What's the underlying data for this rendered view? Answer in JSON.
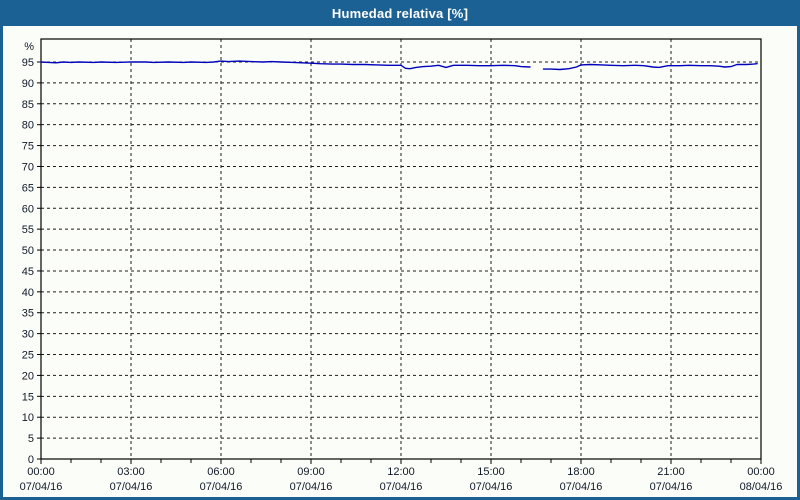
{
  "window": {
    "title": "Humedad relativa [%]"
  },
  "colors": {
    "frame_blue": "#1c6194",
    "background": "#fbfef8",
    "line_blue": "#0000bb",
    "grid_black": "#1c1c1c",
    "axis_black": "#000000",
    "tick_text": "#10182a",
    "title_text": "#ffffff"
  },
  "chart_data": {
    "type": "line",
    "title": "Humedad relativa [%]",
    "ylabel": "%",
    "xlabel": "",
    "grid": "dashed",
    "legend": "none",
    "xlim_hours": [
      0,
      24
    ],
    "ylim": [
      0,
      100.5
    ],
    "y_tick_step": 5,
    "y_ticks": [
      0,
      5,
      10,
      15,
      20,
      25,
      30,
      35,
      40,
      45,
      50,
      55,
      60,
      65,
      70,
      75,
      80,
      85,
      90,
      95
    ],
    "x_minor_step_hours": 1,
    "x_major_ticks": [
      {
        "hour": 0,
        "time": "00:00",
        "date": "07/04/16"
      },
      {
        "hour": 3,
        "time": "03:00",
        "date": "07/04/16"
      },
      {
        "hour": 6,
        "time": "06:00",
        "date": "07/04/16"
      },
      {
        "hour": 9,
        "time": "09:00",
        "date": "07/04/16"
      },
      {
        "hour": 12,
        "time": "12:00",
        "date": "07/04/16"
      },
      {
        "hour": 15,
        "time": "15:00",
        "date": "07/04/16"
      },
      {
        "hour": 18,
        "time": "18:00",
        "date": "07/04/16"
      },
      {
        "hour": 21,
        "time": "21:00",
        "date": "07/04/16"
      },
      {
        "hour": 24,
        "time": "00:00",
        "date": "08/04/16"
      }
    ],
    "series": [
      {
        "name": "Humedad relativa",
        "color": "#0000bb",
        "points": [
          [
            0,
            95.0
          ],
          [
            0.25,
            94.9
          ],
          [
            0.5,
            94.8
          ],
          [
            0.75,
            95.0
          ],
          [
            1,
            94.9
          ],
          [
            1.25,
            95.0
          ],
          [
            1.75,
            94.9
          ],
          [
            2,
            95.0
          ],
          [
            2.5,
            94.9
          ],
          [
            3,
            95.0
          ],
          [
            3.5,
            95.0
          ],
          [
            3.75,
            94.9
          ],
          [
            4.25,
            95.0
          ],
          [
            4.75,
            94.9
          ],
          [
            5,
            95.0
          ],
          [
            5.5,
            94.9
          ],
          [
            5.75,
            95.0
          ],
          [
            6,
            95.2
          ],
          [
            6.25,
            95.1
          ],
          [
            6.6,
            95.2
          ],
          [
            7,
            95.1
          ],
          [
            7.4,
            95.0
          ],
          [
            7.7,
            95.1
          ],
          [
            8,
            95.0
          ],
          [
            8.4,
            94.9
          ],
          [
            8.7,
            94.8
          ],
          [
            9,
            94.7
          ],
          [
            9.3,
            94.6
          ],
          [
            9.7,
            94.5
          ],
          [
            10,
            94.5
          ],
          [
            10.4,
            94.4
          ],
          [
            10.8,
            94.4
          ],
          [
            11.2,
            94.3
          ],
          [
            11.6,
            94.2
          ],
          [
            12,
            94.2
          ],
          [
            12.15,
            93.5
          ],
          [
            12.3,
            93.4
          ],
          [
            12.5,
            93.7
          ],
          [
            12.75,
            93.9
          ],
          [
            13,
            94.0
          ],
          [
            13.25,
            94.2
          ],
          [
            13.5,
            93.7
          ],
          [
            13.75,
            94.2
          ],
          [
            14.2,
            94.2
          ],
          [
            14.6,
            94.1
          ],
          [
            15,
            94.1
          ],
          [
            15.4,
            94.2
          ],
          [
            15.8,
            94.1
          ],
          [
            16,
            93.9
          ],
          [
            16.3,
            93.8
          ],
          [
            16.5,
            null
          ],
          [
            16.75,
            93.3
          ],
          [
            17,
            93.3
          ],
          [
            17.3,
            93.2
          ],
          [
            17.6,
            93.4
          ],
          [
            17.85,
            93.8
          ],
          [
            18,
            94.3
          ],
          [
            18.3,
            94.4
          ],
          [
            18.7,
            94.3
          ],
          [
            19,
            94.2
          ],
          [
            19.4,
            94.1
          ],
          [
            19.8,
            94.2
          ],
          [
            20.1,
            94.1
          ],
          [
            20.4,
            93.8
          ],
          [
            20.6,
            93.7
          ],
          [
            20.9,
            94.1
          ],
          [
            21.3,
            94.1
          ],
          [
            21.6,
            94.2
          ],
          [
            22,
            94.1
          ],
          [
            22.3,
            94.1
          ],
          [
            22.6,
            94.0
          ],
          [
            22.8,
            93.8
          ],
          [
            23,
            93.9
          ],
          [
            23.2,
            94.4
          ],
          [
            23.5,
            94.4
          ],
          [
            23.75,
            94.5
          ],
          [
            23.87,
            94.6
          ]
        ]
      }
    ]
  }
}
